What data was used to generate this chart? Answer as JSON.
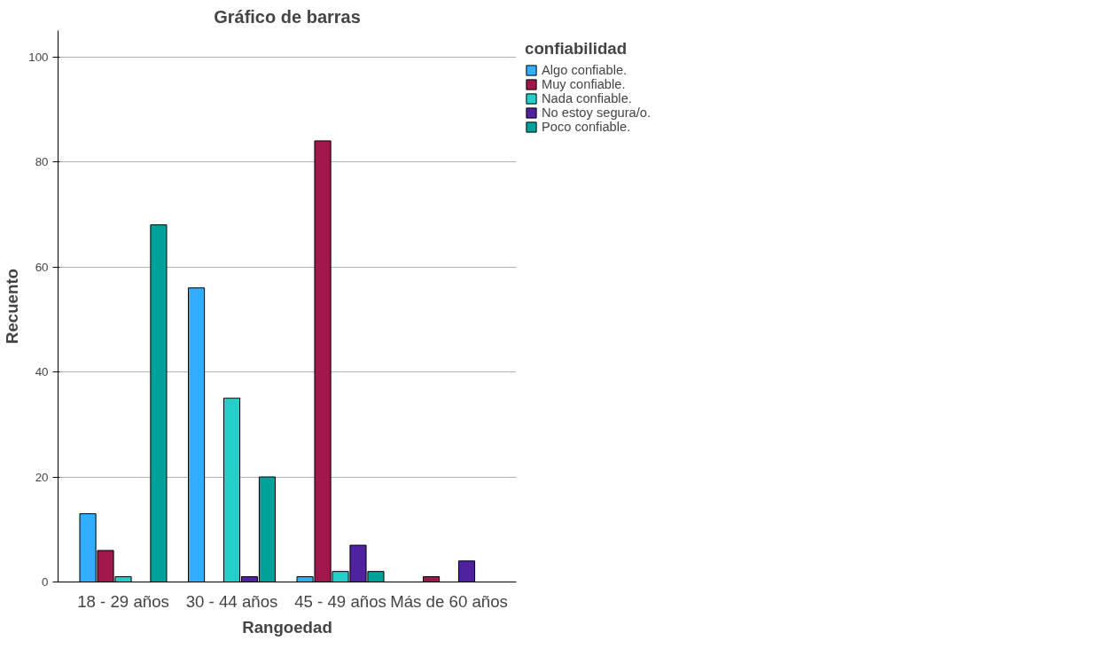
{
  "chart_data": {
    "type": "bar",
    "title": "Gráfico de barras",
    "xlabel": "Rangoedad",
    "ylabel": "Recuento",
    "legend_title": "confiabilidad",
    "categories": [
      "18 - 29 años",
      "30 - 44 años",
      "45 - 49 años",
      "Más de 60 años"
    ],
    "series": [
      {
        "name": "Algo confiable.",
        "color": "#33adff",
        "values": [
          13,
          56,
          1,
          null
        ]
      },
      {
        "name": "Muy confiable.",
        "color": "#a0174b",
        "values": [
          6,
          null,
          84,
          1
        ]
      },
      {
        "name": "Nada confiable.",
        "color": "#24cfc9",
        "values": [
          1,
          35,
          2,
          null
        ]
      },
      {
        "name": "No estoy segura/o.",
        "color": "#5122a0",
        "values": [
          null,
          1,
          7,
          4
        ]
      },
      {
        "name": "Poco confiable.",
        "color": "#00a19a",
        "values": [
          68,
          20,
          2,
          null
        ]
      }
    ],
    "ylim": [
      0,
      105
    ],
    "yticks": [
      0,
      20,
      40,
      60,
      80,
      100
    ],
    "grid": "y",
    "legend": "top right"
  }
}
